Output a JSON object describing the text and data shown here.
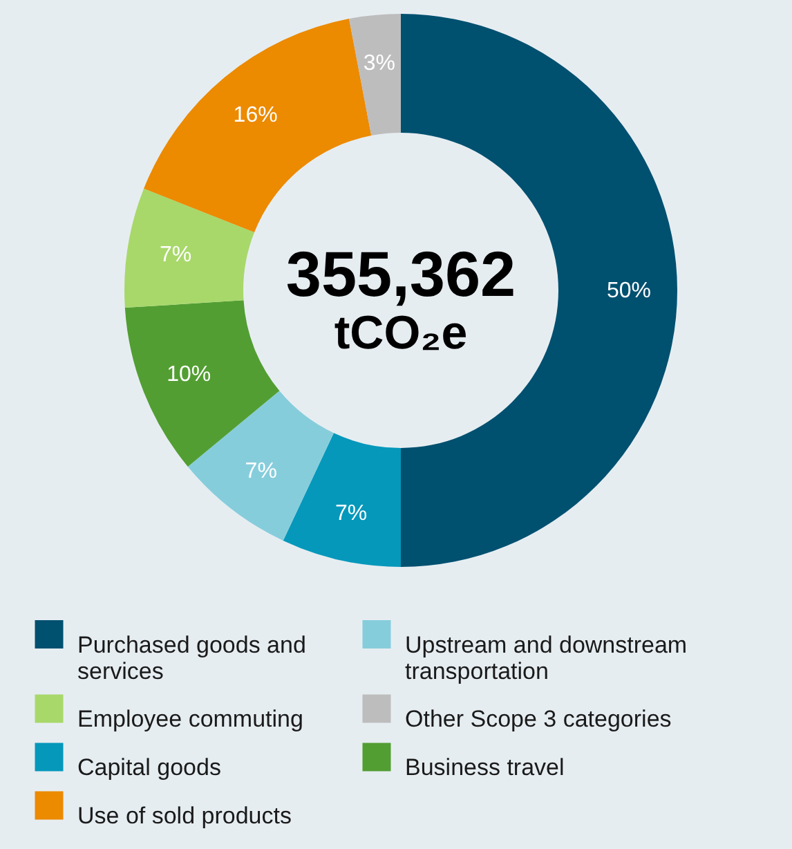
{
  "chart_data": {
    "type": "donut",
    "categories": [
      "Purchased goods and services",
      "Capital goods",
      "Upstream and downstream transportation",
      "Business travel",
      "Employee commuting",
      "Use of sold products",
      "Other Scope 3 categories"
    ],
    "values": [
      50,
      7,
      7,
      10,
      7,
      16,
      3
    ],
    "value_labels": [
      "50%",
      "7%",
      "7%",
      "10%",
      "7%",
      "16%",
      "3%"
    ],
    "colors": [
      "#005070",
      "#0598bb",
      "#86cddc",
      "#529e32",
      "#a8d86a",
      "#ec8a00",
      "#bdbdbd"
    ],
    "annotations": [
      "355,362",
      "tCO₂e"
    ],
    "legend": "bottom"
  }
}
